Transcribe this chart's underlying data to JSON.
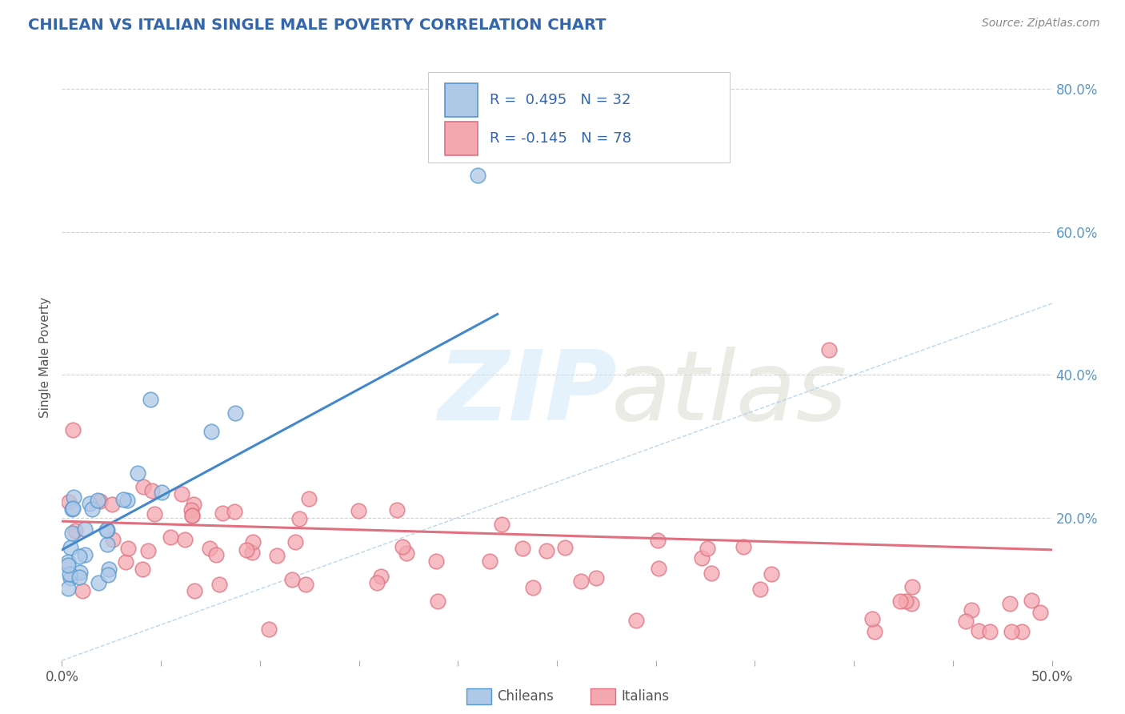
{
  "title": "CHILEAN VS ITALIAN SINGLE MALE POVERTY CORRELATION CHART",
  "source": "Source: ZipAtlas.com",
  "ylabel": "Single Male Poverty",
  "xlim": [
    0.0,
    0.5
  ],
  "ylim": [
    0.0,
    0.85
  ],
  "x_tick_positions": [
    0.0,
    0.05,
    0.1,
    0.15,
    0.2,
    0.25,
    0.3,
    0.35,
    0.4,
    0.45,
    0.5
  ],
  "y_tick_positions": [
    0.0,
    0.2,
    0.4,
    0.6,
    0.8
  ],
  "color_chilean_fill": "#aec8e8",
  "color_chilean_edge": "#5599cc",
  "color_italian_fill": "#f4a8b0",
  "color_italian_edge": "#e07080",
  "color_chilean_line": "#4488cc",
  "color_italian_line": "#e07080",
  "color_diag_line": "#aaccee",
  "title_color": "#3366aa",
  "source_color": "#888888",
  "axis_label_color": "#555555",
  "right_tick_color": "#5599cc",
  "background_color": "#ffffff",
  "grid_color": "#cccccc",
  "legend_text_color": "#3366aa",
  "watermark_zip_color": "#d0e8f8",
  "watermark_atlas_color": "#d8d8cc",
  "chilean_seed": 42,
  "italian_seed": 99,
  "ch_line_x0": 0.0,
  "ch_line_x1": 0.22,
  "ch_line_y0": 0.155,
  "ch_line_y1": 0.485,
  "it_line_x0": 0.0,
  "it_line_x1": 0.5,
  "it_line_y0": 0.195,
  "it_line_y1": 0.155
}
